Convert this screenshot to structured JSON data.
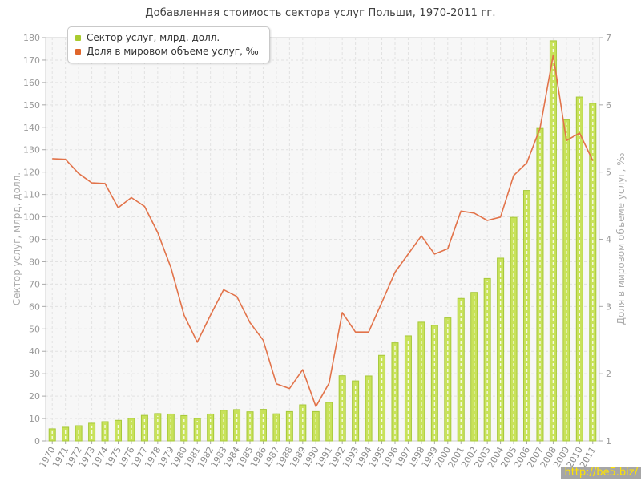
{
  "title": "Добавленная стоимость сектора услуг Польши, 1970-2011 гг.",
  "watermark": "http://be5.biz/",
  "colors": {
    "bar_fill": "#c8e25a",
    "bar_edge": "#a6c838",
    "bar_stripe": "#ffffff",
    "line": "#e2734a",
    "legend_bar_chip": "#a9cb2f",
    "legend_line_chip": "#e0662b",
    "plot_bg": "#f7f7f7",
    "grid": "#e2e2e2",
    "axis": "#cccccc",
    "tick_color": "#aaaaaa",
    "tick_text": "#999999",
    "x_tick_text": "#8c8c8c",
    "axis_title": "#ababab",
    "title_text": "#404040",
    "watermark_bg": "#a6a6a6",
    "watermark_text": "#ffe400"
  },
  "chart_data": {
    "type": "bar",
    "title": "Добавленная стоимость сектора услуг Польши, 1970-2011 гг.",
    "categories": [
      "1970",
      "1971",
      "1972",
      "1973",
      "1974",
      "1975",
      "1976",
      "1977",
      "1978",
      "1979",
      "1980",
      "1981",
      "1982",
      "1983",
      "1984",
      "1985",
      "1986",
      "1987",
      "1988",
      "1989",
      "1990",
      "1991",
      "1992",
      "1993",
      "1994",
      "1995",
      "1996",
      "1997",
      "1998",
      "1999",
      "2000",
      "2001",
      "2002",
      "2003",
      "2004",
      "2005",
      "2006",
      "2007",
      "2008",
      "2009",
      "2010",
      "2011"
    ],
    "series": [
      {
        "name": "Сектор услуг, млрд. долл.",
        "type": "bar",
        "axis": "left",
        "values": [
          5.4,
          6.1,
          6.8,
          7.9,
          8.6,
          9.2,
          10.1,
          11.4,
          12.2,
          12.0,
          11.3,
          10.0,
          12.0,
          13.7,
          14.0,
          13.0,
          14.1,
          12.1,
          13.1,
          16.1,
          13.1,
          17.2,
          29.1,
          26.8,
          29.0,
          38.2,
          43.8,
          46.9,
          53.0,
          51.6,
          54.9,
          63.6,
          66.3,
          72.5,
          81.6,
          99.8,
          111.8,
          139.5,
          178.6,
          143.3,
          153.5,
          150.7
        ]
      },
      {
        "name": "Доля в мировом объеме услуг, ‰",
        "type": "line",
        "axis": "right",
        "values": [
          5.2,
          5.19,
          4.98,
          4.84,
          4.83,
          4.47,
          4.62,
          4.49,
          4.1,
          3.58,
          2.87,
          2.47,
          2.87,
          3.25,
          3.15,
          2.76,
          2.5,
          1.85,
          1.78,
          2.06,
          1.51,
          1.86,
          2.91,
          2.62,
          2.62,
          3.06,
          3.51,
          3.78,
          4.05,
          3.78,
          3.86,
          4.42,
          4.39,
          4.28,
          4.33,
          4.95,
          5.14,
          5.65,
          6.74,
          5.47,
          5.58,
          5.17
        ]
      }
    ],
    "left_axis": {
      "label": "Сектор услуг, млрд. долл.",
      "min": 0,
      "max": 180,
      "step": 10
    },
    "right_axis": {
      "label": "Доля в мировом объеме услуг, ‰",
      "min": 1,
      "max": 7,
      "step": 1
    },
    "grid": true,
    "legend_position": "top-left"
  }
}
